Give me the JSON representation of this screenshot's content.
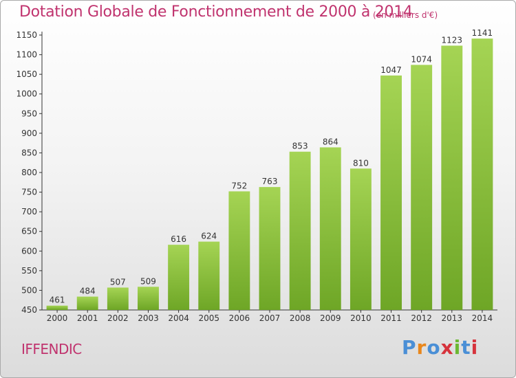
{
  "header": {
    "title": "Dotation Globale de Fonctionnement de 2000 à 2014",
    "unit": "(en milliers d'€)"
  },
  "footer": {
    "commune": "IFFENDIC",
    "logo_text": "Proxiti",
    "logo_colors": [
      "#4a8fd6",
      "#e9871c",
      "#4a8fd6",
      "#d6333c",
      "#6cb832",
      "#4a8fd6",
      "#d6333c"
    ]
  },
  "chart_data": {
    "type": "bar",
    "title": "Dotation Globale de Fonctionnement de 2000 à 2014",
    "xlabel": "",
    "ylabel": "",
    "categories": [
      "2000",
      "2001",
      "2002",
      "2003",
      "2004",
      "2005",
      "2006",
      "2007",
      "2008",
      "2009",
      "2010",
      "2011",
      "2012",
      "2013",
      "2014"
    ],
    "values": [
      461,
      484,
      507,
      509,
      616,
      624,
      752,
      763,
      853,
      864,
      810,
      1047,
      1074,
      1123,
      1141
    ],
    "data_labels": [
      "461",
      "484",
      "507",
      "509",
      "616",
      "624",
      "752",
      "763",
      "853",
      "864",
      "810",
      "1047",
      "1074",
      "1123",
      "1141"
    ],
    "ylim": [
      450,
      1150
    ],
    "yticks": [
      450,
      500,
      550,
      600,
      650,
      700,
      750,
      800,
      850,
      900,
      950,
      1000,
      1050,
      1100,
      1150
    ],
    "grid": false,
    "colors": {
      "bar_light": "#a5d454",
      "bar_dark": "#6ea626",
      "axis": "#333333"
    }
  }
}
